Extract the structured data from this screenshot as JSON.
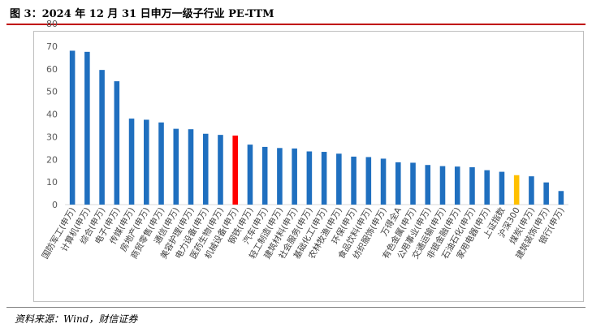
{
  "figure": {
    "title": "图 3：2024 年 12 月 31 日申万一级子行业 PE-TTM",
    "source": "资料来源：Wind，财信证券"
  },
  "colors": {
    "default_bar": "#1f6fbf",
    "highlight_bar": "#ff0000",
    "index_bar": "#ffc000",
    "axis": "#d9d9d9",
    "title_rule": "#c00000"
  },
  "chart_data": {
    "type": "bar",
    "title": "",
    "xlabel": "",
    "ylabel": "",
    "ylim": [
      0,
      80
    ],
    "yticks": [
      0,
      10,
      20,
      30,
      40,
      50,
      60,
      70,
      80
    ],
    "grid": false,
    "legend": "none",
    "categories": [
      "国防军工(申万)",
      "计算机(申万)",
      "综合(申万)",
      "电子(申万)",
      "传媒(申万)",
      "房地产(申万)",
      "商贸零售(申万)",
      "通信(申万)",
      "美容护理(申万)",
      "电力设备(申万)",
      "医药生物(申万)",
      "机械设备(申万)",
      "钢铁(申万)",
      "汽车(申万)",
      "轻工制造(申万)",
      "建筑材料(申万)",
      "社会服务(申万)",
      "基础化工(申万)",
      "农林牧渔(申万)",
      "环保(申万)",
      "食品饮料(申万)",
      "纺织服饰(申万)",
      "万得全A",
      "有色金属(申万)",
      "公用事业(申万)",
      "交通运输(申万)",
      "非银金融(申万)",
      "石油石化(申万)",
      "家用电器(申万)",
      "上证指数",
      "沪深300",
      "煤炭(申万)",
      "建筑装饰(申万)",
      "银行(申万)"
    ],
    "values": [
      68,
      67.5,
      59.5,
      54.5,
      38,
      37.5,
      36.3,
      33.5,
      33.3,
      31.3,
      30.8,
      30.5,
      26.5,
      25.5,
      25,
      24.8,
      23.5,
      23.3,
      22.5,
      21.2,
      21,
      20.3,
      18.7,
      18.5,
      17.5,
      17,
      16.8,
      16.5,
      15.2,
      14.5,
      13,
      12.5,
      9.8,
      6
    ],
    "highlight": {
      "机械设备(申万)": "highlight_bar",
      "沪深300": "index_bar"
    }
  }
}
